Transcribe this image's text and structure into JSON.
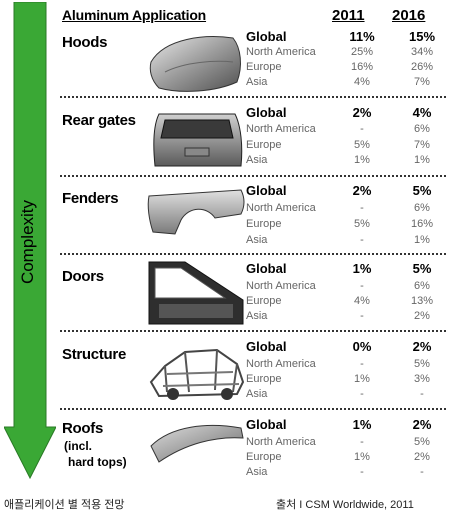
{
  "header": {
    "application_label": "Aluminum Application",
    "year1": "2011",
    "year2": "2016"
  },
  "arrow": {
    "label": "Complexity",
    "color": "#3aa835"
  },
  "sections": [
    {
      "name": "Hoods",
      "sub": "",
      "icon": "hood-icon",
      "rows": [
        {
          "region": "Global",
          "y2011": "11%",
          "y2016": "15%"
        },
        {
          "region": "North America",
          "y2011": "25%",
          "y2016": "34%"
        },
        {
          "region": "Europe",
          "y2011": "16%",
          "y2016": "26%"
        },
        {
          "region": "Asia",
          "y2011": "4%",
          "y2016": "7%"
        }
      ]
    },
    {
      "name": "Rear gates",
      "sub": "",
      "icon": "rear-gate-icon",
      "rows": [
        {
          "region": "Global",
          "y2011": "2%",
          "y2016": "4%"
        },
        {
          "region": "North America",
          "y2011": "-",
          "y2016": "6%"
        },
        {
          "region": "Europe",
          "y2011": "5%",
          "y2016": "7%"
        },
        {
          "region": "Asia",
          "y2011": "1%",
          "y2016": "1%"
        }
      ]
    },
    {
      "name": "Fenders",
      "sub": "",
      "icon": "fender-icon",
      "rows": [
        {
          "region": "Global",
          "y2011": "2%",
          "y2016": "5%"
        },
        {
          "region": "North America",
          "y2011": "-",
          "y2016": "6%"
        },
        {
          "region": "Europe",
          "y2011": "5%",
          "y2016": "16%"
        },
        {
          "region": "Asia",
          "y2011": "-",
          "y2016": "1%"
        }
      ]
    },
    {
      "name": "Doors",
      "sub": "",
      "icon": "door-icon",
      "rows": [
        {
          "region": "Global",
          "y2011": "1%",
          "y2016": "5%"
        },
        {
          "region": "North America",
          "y2011": "-",
          "y2016": "6%"
        },
        {
          "region": "Europe",
          "y2011": "4%",
          "y2016": "13%"
        },
        {
          "region": "Asia",
          "y2011": "-",
          "y2016": "2%"
        }
      ]
    },
    {
      "name": "Structure",
      "sub": "",
      "icon": "body-structure-icon",
      "rows": [
        {
          "region": "Global",
          "y2011": "0%",
          "y2016": "2%"
        },
        {
          "region": "North America",
          "y2011": "-",
          "y2016": "5%"
        },
        {
          "region": "Europe",
          "y2011": "1%",
          "y2016": "3%"
        },
        {
          "region": "Asia",
          "y2011": "-",
          "y2016": "-"
        }
      ]
    },
    {
      "name": "Roofs",
      "sub1": "(incl.",
      "sub2": "hard tops)",
      "icon": "roof-icon",
      "rows": [
        {
          "region": "Global",
          "y2011": "1%",
          "y2016": "2%"
        },
        {
          "region": "North America",
          "y2011": "-",
          "y2016": "5%"
        },
        {
          "region": "Europe",
          "y2011": "1%",
          "y2016": "2%"
        },
        {
          "region": "Asia",
          "y2011": "-",
          "y2016": "-"
        }
      ]
    }
  ],
  "footer": {
    "left": "애플리케이션 별 적용 전망",
    "right": "출처 I CSM Worldwide, 2011"
  }
}
